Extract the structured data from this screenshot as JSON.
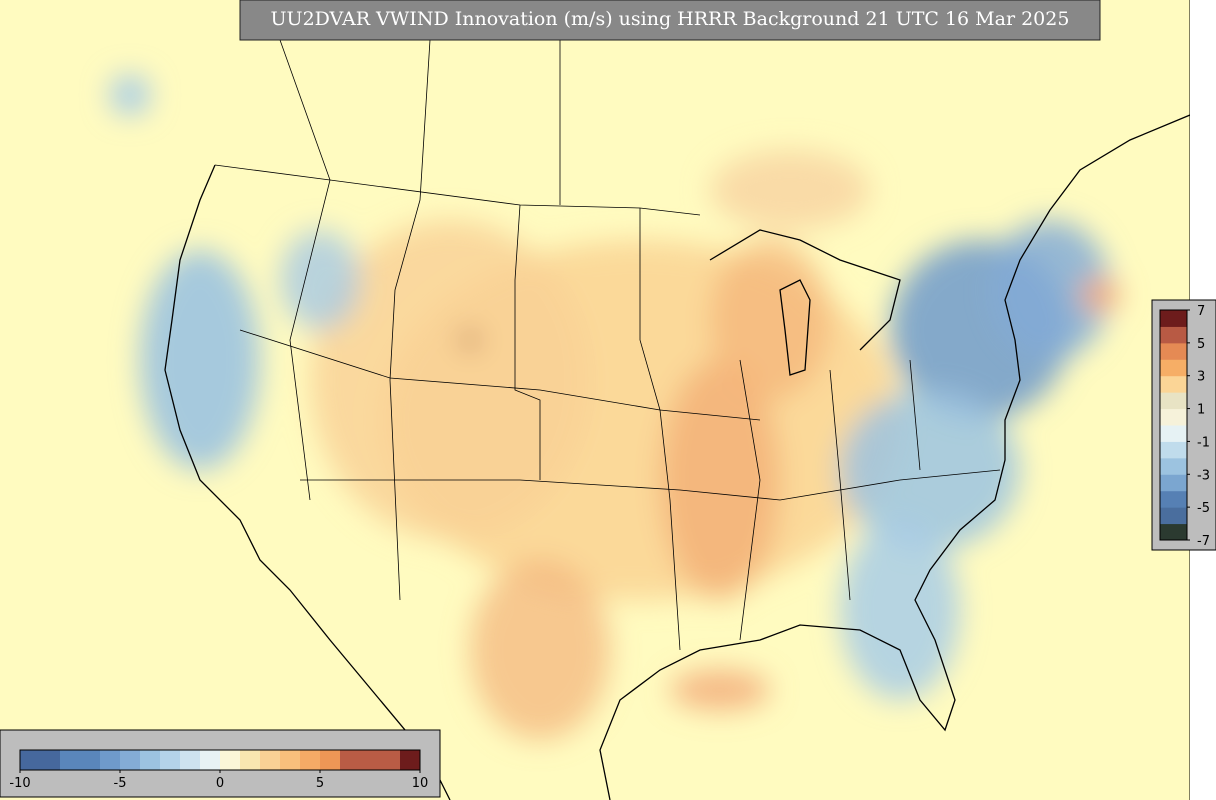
{
  "title": "UU2DVAR VWIND Innovation (m/s) using HRRR Background 21 UTC 16 Mar 2025",
  "colorbar_bottom": {
    "range": [
      -10,
      10
    ],
    "ticks": [
      -10,
      -5,
      0,
      5,
      10
    ],
    "colors": [
      "#46689d",
      "#46689d",
      "#5a86bb",
      "#5a86bb",
      "#6f9acb",
      "#84acd6",
      "#9cc3e0",
      "#b4d3ea",
      "#cde3ef",
      "#e8f3f4",
      "#fbf6d8",
      "#f8e6b0",
      "#fad195",
      "#f8bf7c",
      "#f5aa66",
      "#ee9656",
      "#b95c45",
      "#b95c45",
      "#b95c45",
      "#6d1c1c"
    ]
  },
  "colorbar_right": {
    "range": [
      -7,
      7
    ],
    "ticks": [
      7,
      5,
      3,
      1,
      -1,
      -3,
      -5,
      -7
    ],
    "colors": [
      "#2b3a30",
      "#4a6e9e",
      "#5680b4",
      "#7ba6d0",
      "#9cc3e0",
      "#c0dcec",
      "#e6f2f4",
      "#f6f2da",
      "#e8e3c4",
      "#fbd596",
      "#f6ae66",
      "#e58a54",
      "#b85a44",
      "#6d1c1c"
    ]
  }
}
